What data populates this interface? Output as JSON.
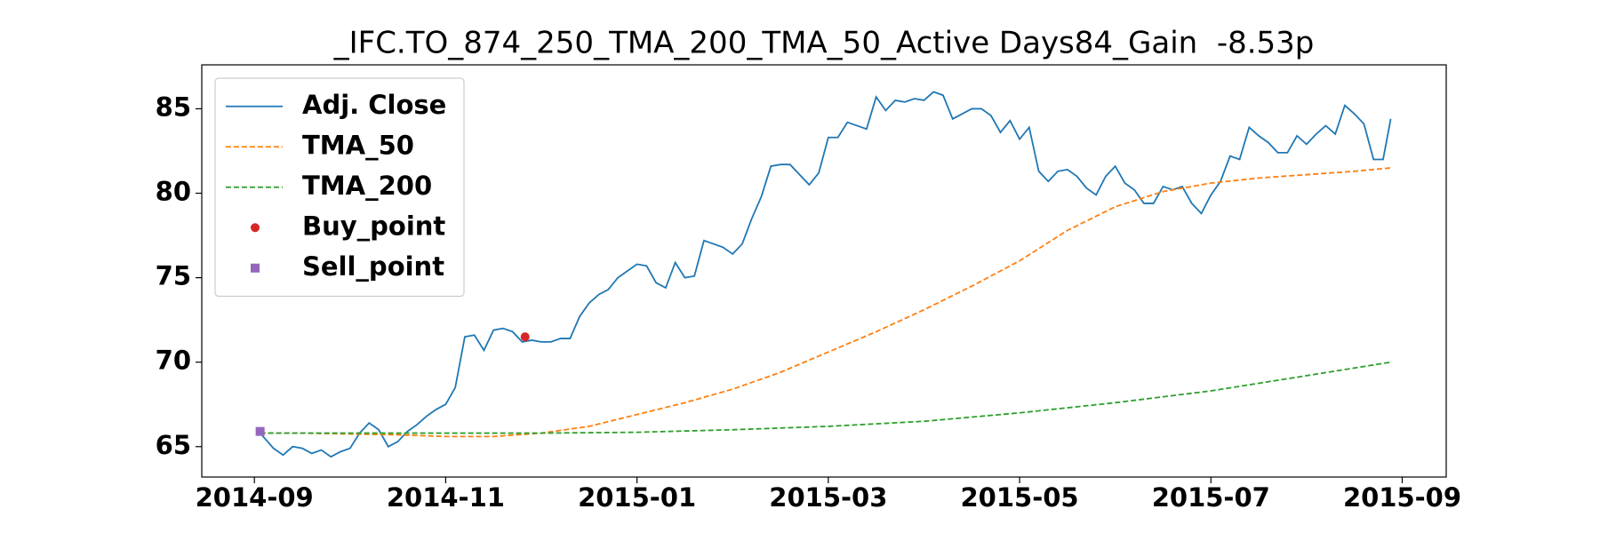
{
  "chart_data": {
    "type": "line",
    "title": "_IFC.TO_874_250_TMA_200_TMA_50_Active Days84_Gain  -8.53p",
    "x": [
      0.06,
      0.2,
      0.3,
      0.4,
      0.5,
      0.6,
      0.7,
      0.8,
      0.9,
      1.0,
      1.1,
      1.2,
      1.3,
      1.4,
      1.5,
      1.6,
      1.7,
      1.8,
      1.9,
      2.0,
      2.1,
      2.2,
      2.3,
      2.4,
      2.5,
      2.6,
      2.7,
      2.8,
      2.9,
      3.0,
      3.1,
      3.2,
      3.3,
      3.4,
      3.5,
      3.6,
      3.7,
      3.8,
      3.9,
      4.0,
      4.1,
      4.2,
      4.3,
      4.4,
      4.5,
      4.6,
      4.7,
      4.8,
      4.9,
      5.0,
      5.1,
      5.2,
      5.3,
      5.4,
      5.5,
      5.6,
      5.7,
      5.8,
      5.9,
      6.0,
      6.1,
      6.2,
      6.3,
      6.4,
      6.5,
      6.6,
      6.7,
      6.8,
      6.9,
      7.0,
      7.1,
      7.2,
      7.3,
      7.4,
      7.5,
      7.6,
      7.7,
      7.8,
      7.9,
      8.0,
      8.1,
      8.2,
      8.3,
      8.4,
      8.5,
      8.6,
      8.7,
      8.8,
      8.9,
      9.0,
      9.1,
      9.2,
      9.3,
      9.4,
      9.5,
      9.6,
      9.7,
      9.8,
      9.9,
      10.0,
      10.1,
      10.2,
      10.3,
      10.4,
      10.5,
      10.6,
      10.7,
      10.8,
      10.9,
      11.0,
      11.1,
      11.2,
      11.3,
      11.4,
      11.5,
      11.6,
      11.7,
      11.8,
      11.88
    ],
    "xlim": [
      -0.55,
      12.46
    ],
    "xticks": [
      {
        "value": 0,
        "label": "2014-09"
      },
      {
        "value": 2,
        "label": "2014-11"
      },
      {
        "value": 4,
        "label": "2015-01"
      },
      {
        "value": 6,
        "label": "2015-03"
      },
      {
        "value": 8,
        "label": "2015-05"
      },
      {
        "value": 10,
        "label": "2015-07"
      },
      {
        "value": 12,
        "label": "2015-09"
      }
    ],
    "ylim": [
      63.2,
      87.6
    ],
    "yticks": [
      65,
      70,
      75,
      80,
      85
    ],
    "legend": "upper left",
    "series": [
      {
        "name": "Adj. Close",
        "color": "#1f77b4",
        "style": "solid",
        "values": [
          65.8,
          64.9,
          64.5,
          65.0,
          64.9,
          64.6,
          64.8,
          64.4,
          64.7,
          64.9,
          65.8,
          66.4,
          66.0,
          65.0,
          65.3,
          65.9,
          66.3,
          66.8,
          67.2,
          67.5,
          68.5,
          71.5,
          71.6,
          70.7,
          71.9,
          72.0,
          71.8,
          71.2,
          71.3,
          71.2,
          71.2,
          71.4,
          71.4,
          72.7,
          73.5,
          74.0,
          74.3,
          75.0,
          75.4,
          75.8,
          75.7,
          74.7,
          74.4,
          75.9,
          75.0,
          75.1,
          77.2,
          77.0,
          76.8,
          76.4,
          77.0,
          78.5,
          79.8,
          81.6,
          81.7,
          81.7,
          81.1,
          80.5,
          81.2,
          83.3,
          83.3,
          84.2,
          84.0,
          83.8,
          85.7,
          84.9,
          85.5,
          85.4,
          85.6,
          85.5,
          86.0,
          85.8,
          84.4,
          84.7,
          85.0,
          85.0,
          84.6,
          83.6,
          84.3,
          83.2,
          83.9,
          81.3,
          80.7,
          81.3,
          81.4,
          81.0,
          80.3,
          79.9,
          81.0,
          81.6,
          80.6,
          80.2,
          79.4,
          79.4,
          80.4,
          80.2,
          80.4,
          79.4,
          78.8,
          79.9,
          80.7,
          82.2,
          82.0,
          83.9,
          83.4,
          83.0,
          82.4,
          82.4,
          83.4,
          82.9,
          83.5,
          84.0,
          83.5,
          85.2,
          84.7,
          84.1,
          82.0,
          82.0,
          84.4
        ]
      },
      {
        "name": "TMA_50",
        "color": "#ff7f0e",
        "style": "dashed",
        "x": [
          0.06,
          0.5,
          1.0,
          1.5,
          2.0,
          2.5,
          3.0,
          3.5,
          4.0,
          4.5,
          5.0,
          5.5,
          6.0,
          6.5,
          7.0,
          7.5,
          8.0,
          8.5,
          9.0,
          9.5,
          10.0,
          10.5,
          11.0,
          11.5,
          11.88
        ],
        "values": [
          65.8,
          65.8,
          65.75,
          65.7,
          65.6,
          65.6,
          65.8,
          66.2,
          66.9,
          67.6,
          68.4,
          69.4,
          70.6,
          71.8,
          73.1,
          74.5,
          76.0,
          77.8,
          79.2,
          80.1,
          80.6,
          80.9,
          81.1,
          81.3,
          81.5
        ]
      },
      {
        "name": "TMA_200",
        "color": "#2ca02c",
        "style": "dashed",
        "x": [
          0.06,
          1.0,
          2.0,
          3.0,
          4.0,
          5.0,
          6.0,
          7.0,
          8.0,
          9.0,
          10.0,
          11.0,
          11.88
        ],
        "values": [
          65.8,
          65.8,
          65.8,
          65.8,
          65.85,
          66.0,
          66.2,
          66.5,
          67.0,
          67.6,
          68.3,
          69.2,
          70.0
        ]
      },
      {
        "name": "Buy_point",
        "color": "#d62728",
        "marker": "circle",
        "x": [
          2.83
        ],
        "values": [
          71.5
        ]
      },
      {
        "name": "Sell_point",
        "color": "#9467bd",
        "marker": "square",
        "x": [
          0.06
        ],
        "values": [
          65.9
        ]
      }
    ]
  }
}
